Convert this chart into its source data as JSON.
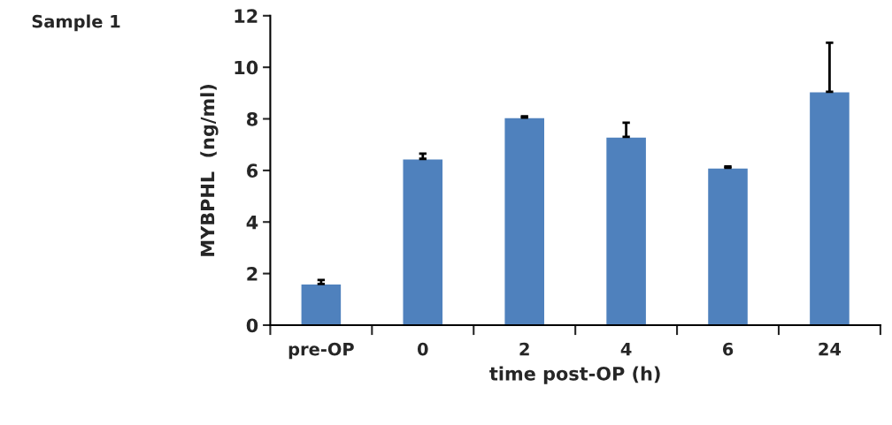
{
  "chart_data": {
    "type": "bar",
    "title": "Sample 1",
    "xlabel": "time post-OP (h)",
    "ylabel": "MYBPHL  (ng/ml)",
    "categories": [
      "pre-OP",
      "0",
      "2",
      "4",
      "6",
      "24"
    ],
    "values": [
      1.6,
      6.45,
      8.05,
      7.3,
      6.1,
      9.05
    ],
    "errors": [
      [
        1.6,
        1.75
      ],
      [
        6.45,
        6.65
      ],
      [
        8.05,
        8.1
      ],
      [
        7.3,
        7.85
      ],
      [
        6.1,
        6.15
      ],
      [
        9.05,
        10.95
      ]
    ],
    "color": "#4f81bd",
    "ylim": [
      0,
      12
    ],
    "yticks": [
      0,
      2,
      4,
      6,
      8,
      10,
      12
    ],
    "grid": false,
    "legend": false
  }
}
